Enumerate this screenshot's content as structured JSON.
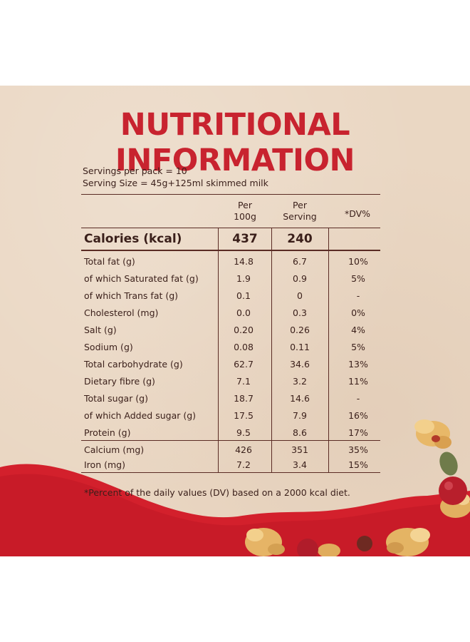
{
  "title": "NUTRITIONAL INFORMATION",
  "servings_per_pack": "Servings per pack = 10",
  "serving_size": "Serving Size = 45g+125ml skimmed milk",
  "headers": {
    "per_100g_line1": "Per",
    "per_100g_line2": "100g",
    "per_serving_line1": "Per",
    "per_serving_line2": "Serving",
    "dv": "*DV%"
  },
  "calories": {
    "label": "Calories (kcal)",
    "per_100g": "437",
    "per_serving": "240"
  },
  "rows": [
    {
      "name": "Total fat (g)",
      "per_100g": "14.8",
      "per_serving": "6.7",
      "dv": "10%"
    },
    {
      "name": "of which Saturated fat (g)",
      "per_100g": "1.9",
      "per_serving": "0.9",
      "dv": "5%"
    },
    {
      "name": "of which Trans fat (g)",
      "per_100g": "0.1",
      "per_serving": "0",
      "dv": "-"
    },
    {
      "name": "Cholesterol (mg)",
      "per_100g": "0.0",
      "per_serving": "0.3",
      "dv": "0%"
    },
    {
      "name": "Salt (g)",
      "per_100g": "0.20",
      "per_serving": "0.26",
      "dv": "4%"
    },
    {
      "name": "Sodium (g)",
      "per_100g": "0.08",
      "per_serving": "0.11",
      "dv": "5%"
    },
    {
      "name": "Total carbohydrate (g)",
      "per_100g": "62.7",
      "per_serving": "34.6",
      "dv": "13%"
    },
    {
      "name": "Dietary fibre (g)",
      "per_100g": "7.1",
      "per_serving": "3.2",
      "dv": "11%"
    },
    {
      "name": "Total sugar (g)",
      "per_100g": "18.7",
      "per_serving": "14.6",
      "dv": "-"
    },
    {
      "name": "of which Added sugar (g)",
      "per_100g": "17.5",
      "per_serving": "7.9",
      "dv": "16%"
    },
    {
      "name": "Protein (g)",
      "per_100g": "9.5",
      "per_serving": "8.6",
      "dv": "17%"
    },
    {
      "name": "Calcium (mg)",
      "per_100g": "426",
      "per_serving": "351",
      "dv": "35%"
    },
    {
      "name": "Iron (mg)",
      "per_100g": "7.2",
      "per_serving": "3.4",
      "dv": "15%"
    }
  ],
  "footnote": "*Percent of the daily values (DV) based on a 2000 kcal diet.",
  "colors": {
    "title_red": "#c8232f",
    "text_brown": "#3a1f1a",
    "background": "#ead7c3",
    "wave_red": "#d3202c"
  },
  "decor": {
    "images": [
      "granola-cluster-image",
      "cranberry-image",
      "pumpkin-seed-image",
      "red-wave-image"
    ]
  }
}
